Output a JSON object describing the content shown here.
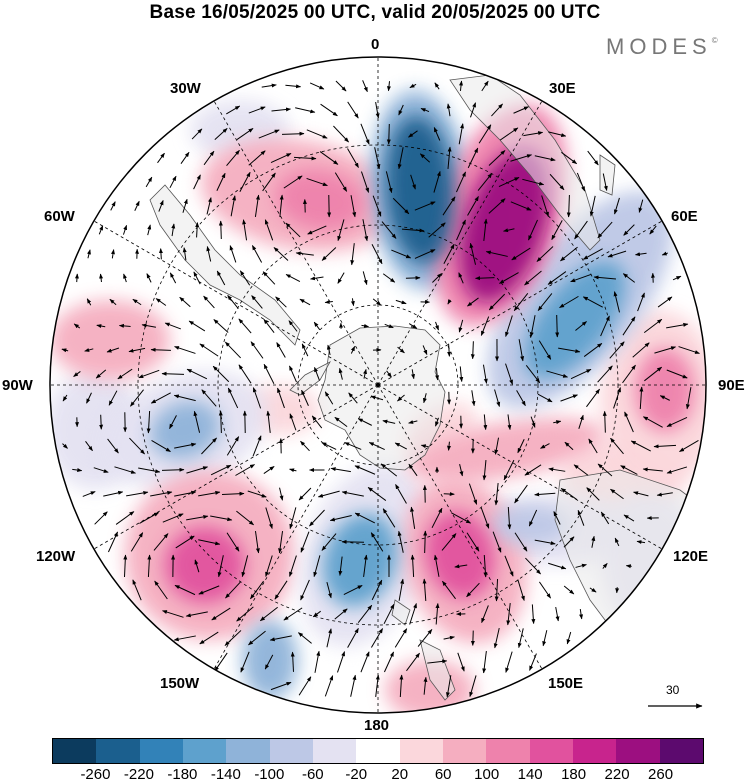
{
  "title": "Base 16/05/2025 00 UTC, valid 20/05/2025 00 UTC",
  "brand": "MODES",
  "brand_mark": "©",
  "longitude_labels": {
    "top": "0",
    "top_left": "30W",
    "top_right": "30E",
    "left_upper": "60W",
    "right_upper": "60E",
    "left": "90W",
    "right": "90E",
    "left_lower": "120W",
    "right_lower": "120E",
    "bottom_left": "150W",
    "bottom_right": "150E",
    "bottom": "180"
  },
  "reference_vector": {
    "value": "30"
  },
  "colorbar": {
    "colors": [
      "#0c3b5e",
      "#1b5f8e",
      "#3282b8",
      "#5ea1cd",
      "#8fb3d9",
      "#bdc8e6",
      "#e4e2f2",
      "#ffffff",
      "#fbd7dc",
      "#f5aec0",
      "#ee82ac",
      "#e1529e",
      "#c8248d",
      "#9c0f80",
      "#5c0a6e"
    ],
    "ticks": [
      "-260",
      "-220",
      "-180",
      "-140",
      "-100",
      "-60",
      "-20",
      "20",
      "60",
      "100",
      "140",
      "180",
      "220",
      "260"
    ]
  },
  "map_colors": {
    "land": "#e9e9e9",
    "coast": "#555555",
    "grid": "#000000",
    "wind": "#000000"
  }
}
